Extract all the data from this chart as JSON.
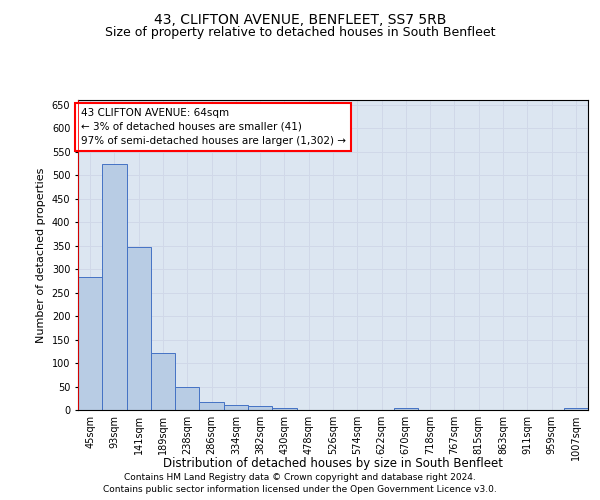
{
  "title": "43, CLIFTON AVENUE, BENFLEET, SS7 5RB",
  "subtitle": "Size of property relative to detached houses in South Benfleet",
  "xlabel": "Distribution of detached houses by size in South Benfleet",
  "ylabel": "Number of detached properties",
  "categories": [
    "45sqm",
    "93sqm",
    "141sqm",
    "189sqm",
    "238sqm",
    "286sqm",
    "334sqm",
    "382sqm",
    "430sqm",
    "478sqm",
    "526sqm",
    "574sqm",
    "622sqm",
    "670sqm",
    "718sqm",
    "767sqm",
    "815sqm",
    "863sqm",
    "911sqm",
    "959sqm",
    "1007sqm"
  ],
  "values": [
    283,
    523,
    347,
    122,
    48,
    17,
    11,
    9,
    5,
    0,
    0,
    0,
    0,
    5,
    0,
    0,
    0,
    0,
    0,
    0,
    5
  ],
  "bar_color": "#b8cce4",
  "bar_edge_color": "#4472c4",
  "grid_color": "#d0d8e8",
  "background_color": "#dce6f1",
  "annotation_box_text": "43 CLIFTON AVENUE: 64sqm\n← 3% of detached houses are smaller (41)\n97% of semi-detached houses are larger (1,302) →",
  "ylim": [
    0,
    660
  ],
  "yticks": [
    0,
    50,
    100,
    150,
    200,
    250,
    300,
    350,
    400,
    450,
    500,
    550,
    600,
    650
  ],
  "footer": "Contains HM Land Registry data © Crown copyright and database right 2024.\nContains public sector information licensed under the Open Government Licence v3.0.",
  "title_fontsize": 10,
  "subtitle_fontsize": 9,
  "xlabel_fontsize": 8.5,
  "ylabel_fontsize": 8,
  "tick_fontsize": 7,
  "annot_fontsize": 7.5,
  "footer_fontsize": 6.5
}
